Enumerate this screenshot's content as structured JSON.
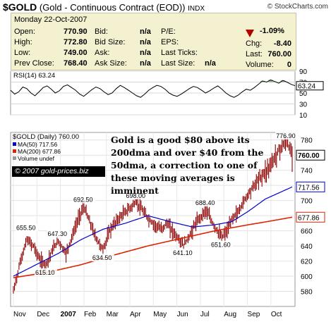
{
  "header": {
    "symbol": "$GOLD",
    "description": "(Gold - Continuous Contract (EOD))",
    "exchange": "INDX",
    "site": "© StockCharts.com"
  },
  "quote": {
    "date": "Monday  22-Oct-2007",
    "rows": [
      {
        "label": "Open:",
        "value": "770.90",
        "label2": "Bid:",
        "value2": "n/a",
        "label3": "P/E:",
        "value3": ""
      },
      {
        "label": "High:",
        "value": "772.80",
        "label2": "Bid Size:",
        "value2": "n/a",
        "label3": "EPS:",
        "value3": ""
      },
      {
        "label": "Low:",
        "value": "749.00",
        "label2": "Ask:",
        "value2": "n/a",
        "label3": "Last Ticks:",
        "value3": ""
      },
      {
        "label": "Prev Close:",
        "value": "768.40",
        "label2": "Ask Size:",
        "value2": "n/a",
        "label3": "Last Size:",
        "value3": "n/a"
      }
    ],
    "change_pct": "-1.09%",
    "chg_label": "Chg:",
    "chg_value": "-8.40",
    "last_label": "Last:",
    "last_value": "760.00",
    "volume_label": "Volume:",
    "volume_value": "0",
    "down_color": "#b00000"
  },
  "chart_data": [
    {
      "type": "line",
      "title": "RSI(14) 63.24",
      "series": [
        {
          "name": "RSI(14)",
          "values": [
            55,
            48,
            52,
            61,
            58,
            50,
            45,
            52,
            60,
            63,
            57,
            50,
            54,
            62,
            65,
            60,
            55,
            48,
            44,
            50,
            56,
            61,
            58,
            52,
            47,
            50,
            58,
            64,
            60,
            55,
            50,
            45,
            42,
            48,
            55,
            60,
            64,
            62,
            57,
            50,
            46,
            44,
            48,
            53,
            58,
            62,
            60,
            55,
            50,
            54,
            59,
            63,
            57,
            50,
            45,
            42,
            46,
            52,
            57,
            55,
            60,
            66,
            72,
            70,
            74,
            71,
            68,
            73,
            70,
            66,
            63.24
          ]
        }
      ],
      "y_ticks": [
        10,
        30,
        50,
        70,
        90
      ],
      "ylim": [
        10,
        90
      ],
      "overbought": 70,
      "oversold": 30,
      "current_label": "63.24"
    },
    {
      "type": "line",
      "title": "$GOLD (Daily) 760.00",
      "legend": [
        {
          "name": "MA(50) 717.56",
          "color": "#0000cc"
        },
        {
          "name": "MA(200) 677.86",
          "color": "#dd2200"
        },
        {
          "name": "Volume undef",
          "color": "#999999"
        }
      ],
      "price_color": "#8b0000",
      "x_labels": [
        "Nov",
        "Dec",
        "2007",
        "Feb",
        "Mar",
        "Apr",
        "May",
        "Jun",
        "Jul",
        "Aug",
        "Sep",
        "Oct"
      ],
      "x_label_positions": [
        0,
        21,
        42,
        63,
        83,
        104,
        125,
        146,
        167,
        188,
        209,
        230
      ],
      "n_days": 250,
      "y_ticks": [
        580,
        600,
        620,
        640,
        660,
        680,
        700,
        720,
        740,
        760,
        780
      ],
      "ylim": [
        560,
        790
      ],
      "price_keypoints": [
        [
          0,
          580
        ],
        [
          6,
          618
        ],
        [
          12,
          648
        ],
        [
          18,
          640
        ],
        [
          24,
          620
        ],
        [
          29,
          615
        ],
        [
          35,
          635
        ],
        [
          40,
          647
        ],
        [
          47,
          630
        ],
        [
          53,
          655
        ],
        [
          59,
          680
        ],
        [
          63,
          692
        ],
        [
          68,
          672
        ],
        [
          74,
          650
        ],
        [
          80,
          635
        ],
        [
          86,
          660
        ],
        [
          92,
          673
        ],
        [
          98,
          682
        ],
        [
          104,
          690
        ],
        [
          110,
          698
        ],
        [
          116,
          685
        ],
        [
          121,
          675
        ],
        [
          126,
          668
        ],
        [
          132,
          662
        ],
        [
          137,
          670
        ],
        [
          142,
          660
        ],
        [
          147,
          650
        ],
        [
          152,
          641
        ],
        [
          157,
          652
        ],
        [
          162,
          668
        ],
        [
          167,
          678
        ],
        [
          172,
          688
        ],
        [
          176,
          675
        ],
        [
          181,
          662
        ],
        [
          186,
          651
        ],
        [
          191,
          660
        ],
        [
          196,
          678
        ],
        [
          201,
          685
        ],
        [
          206,
          700
        ],
        [
          211,
          712
        ],
        [
          216,
          722
        ],
        [
          221,
          732
        ],
        [
          226,
          740
        ],
        [
          231,
          750
        ],
        [
          235,
          762
        ],
        [
          240,
          772
        ],
        [
          244,
          777
        ],
        [
          249,
          760
        ]
      ],
      "ma50_keypoints": [
        [
          0,
          600
        ],
        [
          20,
          615
        ],
        [
          40,
          630
        ],
        [
          60,
          648
        ],
        [
          80,
          662
        ],
        [
          100,
          670
        ],
        [
          120,
          680
        ],
        [
          140,
          672
        ],
        [
          160,
          665
        ],
        [
          180,
          668
        ],
        [
          195,
          672
        ],
        [
          210,
          686
        ],
        [
          225,
          702
        ],
        [
          240,
          712
        ],
        [
          249,
          718
        ]
      ],
      "ma200_keypoints": [
        [
          0,
          598
        ],
        [
          30,
          605
        ],
        [
          60,
          615
        ],
        [
          90,
          628
        ],
        [
          120,
          640
        ],
        [
          150,
          650
        ],
        [
          180,
          660
        ],
        [
          210,
          668
        ],
        [
          230,
          673
        ],
        [
          249,
          678
        ]
      ],
      "annotations": [
        {
          "text": "655.50",
          "x": 12,
          "y": 655.5
        },
        {
          "text": "647.30",
          "x": 40,
          "y": 647.3
        },
        {
          "text": "615.10",
          "x": 29,
          "y": 615.1
        },
        {
          "text": "692.50",
          "x": 63,
          "y": 692.5
        },
        {
          "text": "634.50",
          "x": 80,
          "y": 634.5
        },
        {
          "text": "698.00",
          "x": 110,
          "y": 698.0
        },
        {
          "text": "641.10",
          "x": 152,
          "y": 641.1
        },
        {
          "text": "688.40",
          "x": 172,
          "y": 688.4
        },
        {
          "text": "651.60",
          "x": 186,
          "y": 651.6
        },
        {
          "text": "776.90",
          "x": 244,
          "y": 776.9
        }
      ],
      "ma50_label": "717.56",
      "ma200_label": "677.86",
      "last_label": "760.00"
    }
  ],
  "overlay": {
    "note": "Gold is a good $80 above its 200dma and over $40 from the 50dma, a correction to one of these moving averages is imminent",
    "copyright": "© 2007 gold-prices.biz"
  }
}
